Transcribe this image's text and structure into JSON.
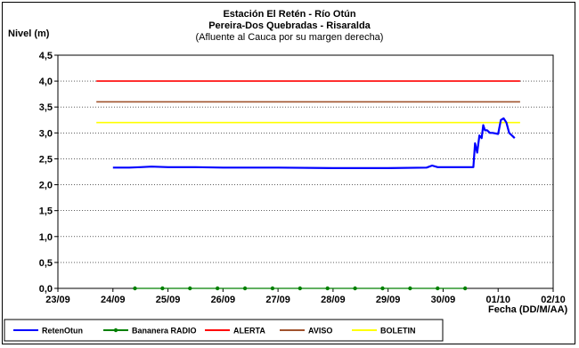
{
  "chart_data": {
    "type": "line",
    "title": "Estación El Retén - Río Otún",
    "subtitle": "Pereira-Dos Quebradas - Risaralda",
    "subtitle2": "(Afluente al Cauca por su margen derecha)",
    "ylabel": "Nivel (m)",
    "xlabel": "Fecha (DD/M/AA)",
    "ylim": [
      0,
      4.5
    ],
    "xlim": [
      0,
      9
    ],
    "x_ticks": [
      {
        "pos": 0,
        "label": "23/09"
      },
      {
        "pos": 1,
        "label": "24/09"
      },
      {
        "pos": 2,
        "label": "25/09"
      },
      {
        "pos": 3,
        "label": "26/09"
      },
      {
        "pos": 4,
        "label": "27/09"
      },
      {
        "pos": 5,
        "label": "28/09"
      },
      {
        "pos": 6,
        "label": "29/09"
      },
      {
        "pos": 7,
        "label": "30/09"
      },
      {
        "pos": 8,
        "label": "01/10"
      },
      {
        "pos": 9,
        "label": "02/10"
      }
    ],
    "y_ticks": [
      "0,0",
      "0,5",
      "1,0",
      "1,5",
      "2,0",
      "2,5",
      "3,0",
      "3,5",
      "4,0",
      "4,5"
    ],
    "grid": {
      "horizontal": true,
      "vertical": false
    },
    "legend_position": "bottom",
    "series": [
      {
        "name": "RetenOtun",
        "color": "#0000ff",
        "x": [
          1.0,
          1.3,
          1.5,
          1.7,
          2.0,
          2.5,
          3.0,
          4.0,
          5.0,
          6.0,
          6.7,
          6.8,
          6.9,
          7.0,
          7.4,
          7.55,
          7.58,
          7.62,
          7.66,
          7.7,
          7.73,
          7.76,
          7.8,
          7.85,
          7.9,
          8.0,
          8.05,
          8.1,
          8.15,
          8.2,
          8.25,
          8.3
        ],
        "y": [
          2.33,
          2.33,
          2.34,
          2.35,
          2.34,
          2.34,
          2.33,
          2.33,
          2.32,
          2.32,
          2.33,
          2.37,
          2.34,
          2.34,
          2.34,
          2.34,
          2.8,
          2.62,
          2.95,
          2.9,
          3.15,
          3.05,
          3.05,
          3.0,
          3.0,
          2.98,
          3.25,
          3.28,
          3.2,
          3.0,
          2.95,
          2.9
        ]
      },
      {
        "name": "Bananera RADIO",
        "color": "#008000",
        "x": [
          1.4,
          1.9,
          2.4,
          2.9,
          3.4,
          3.9,
          4.4,
          4.9,
          5.4,
          5.9,
          6.4,
          6.9,
          7.4
        ],
        "y": [
          0,
          0,
          0,
          0,
          0,
          0,
          0,
          0,
          0,
          0,
          0,
          0,
          0
        ]
      },
      {
        "name": "ALERTA",
        "color": "#ff0000",
        "x": [
          0.7,
          8.4
        ],
        "y": [
          4.0,
          4.0
        ]
      },
      {
        "name": "AVISO",
        "color": "#a0522d",
        "x": [
          0.7,
          8.4
        ],
        "y": [
          3.6,
          3.6
        ]
      },
      {
        "name": "BOLETIN",
        "color": "#ffff00",
        "x": [
          0.7,
          8.4
        ],
        "y": [
          3.2,
          3.2
        ]
      }
    ]
  }
}
